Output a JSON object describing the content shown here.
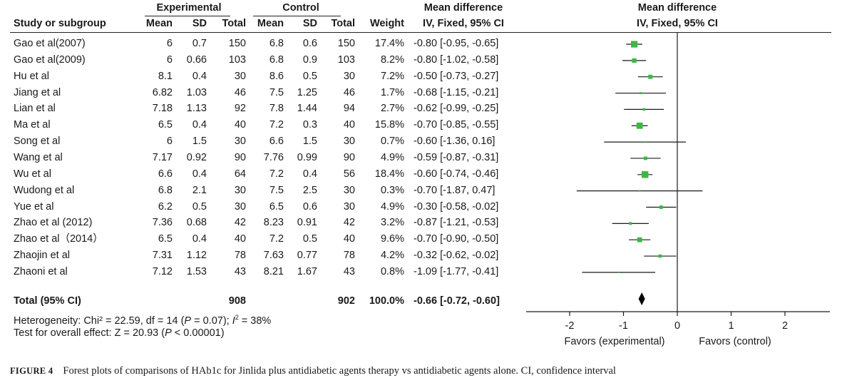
{
  "headers": {
    "group_experimental": "Experimental",
    "group_control": "Control",
    "col_study": "Study or subgroup",
    "col_mean": "Mean",
    "col_sd": "SD",
    "col_total": "Total",
    "col_weight": "Weight",
    "md_title": "Mean difference",
    "md_method": "IV, Fixed, 95% CI",
    "plot_title": "Mean difference",
    "plot_method": "IV, Fixed, 95% CI"
  },
  "rows": [
    {
      "study": "Gao et al(2007)",
      "e_mean": "6",
      "e_sd": "0.7",
      "e_total": "150",
      "c_mean": "6.8",
      "c_sd": "0.6",
      "c_total": "150",
      "weight": "17.4%",
      "ci_text": "-0.80 [-0.95, -0.65]"
    },
    {
      "study": "Gao et al(2009)",
      "e_mean": "6",
      "e_sd": "0.66",
      "e_total": "103",
      "c_mean": "6.8",
      "c_sd": "0.9",
      "c_total": "103",
      "weight": "8.2%",
      "ci_text": "-0.80 [-1.02, -0.58]"
    },
    {
      "study": "Hu et al",
      "e_mean": "8.1",
      "e_sd": "0.4",
      "e_total": "30",
      "c_mean": "8.6",
      "c_sd": "0.5",
      "c_total": "30",
      "weight": "7.2%",
      "ci_text": "-0.50 [-0.73, -0.27]"
    },
    {
      "study": "Jiang et al",
      "e_mean": "6.82",
      "e_sd": "1.03",
      "e_total": "46",
      "c_mean": "7.5",
      "c_sd": "1.25",
      "c_total": "46",
      "weight": "1.7%",
      "ci_text": "-0.68 [-1.15, -0.21]"
    },
    {
      "study": "Lian et al",
      "e_mean": "7.18",
      "e_sd": "1.13",
      "e_total": "92",
      "c_mean": "7.8",
      "c_sd": "1.44",
      "c_total": "94",
      "weight": "2.7%",
      "ci_text": "-0.62 [-0.99, -0.25]"
    },
    {
      "study": "Ma et al",
      "e_mean": "6.5",
      "e_sd": "0.4",
      "e_total": "40",
      "c_mean": "7.2",
      "c_sd": "0.3",
      "c_total": "40",
      "weight": "15.8%",
      "ci_text": "-0.70 [-0.85, -0.55]"
    },
    {
      "study": "Song et al",
      "e_mean": "6",
      "e_sd": "1.5",
      "e_total": "30",
      "c_mean": "6.6",
      "c_sd": "1.5",
      "c_total": "30",
      "weight": "0.7%",
      "ci_text": "-0.60 [-1.36, 0.16]"
    },
    {
      "study": "Wang et al",
      "e_mean": "7.17",
      "e_sd": "0.92",
      "e_total": "90",
      "c_mean": "7.76",
      "c_sd": "0.99",
      "c_total": "90",
      "weight": "4.9%",
      "ci_text": "-0.59 [-0.87, -0.31]"
    },
    {
      "study": "Wu et al",
      "e_mean": "6.6",
      "e_sd": "0.4",
      "e_total": "64",
      "c_mean": "7.2",
      "c_sd": "0.4",
      "c_total": "56",
      "weight": "18.4%",
      "ci_text": "-0.60 [-0.74, -0.46]"
    },
    {
      "study": "Wudong et al",
      "e_mean": "6.8",
      "e_sd": "2.1",
      "e_total": "30",
      "c_mean": "7.5",
      "c_sd": "2.5",
      "c_total": "30",
      "weight": "0.3%",
      "ci_text": "-0.70 [-1.87, 0.47]"
    },
    {
      "study": "Yue et al",
      "e_mean": "6.2",
      "e_sd": "0.5",
      "e_total": "30",
      "c_mean": "6.5",
      "c_sd": "0.6",
      "c_total": "30",
      "weight": "4.9%",
      "ci_text": "-0.30 [-0.58, -0.02]"
    },
    {
      "study": "Zhao et al (2012)",
      "e_mean": "7.36",
      "e_sd": "0.68",
      "e_total": "42",
      "c_mean": "8.23",
      "c_sd": "0.91",
      "c_total": "42",
      "weight": "3.2%",
      "ci_text": "-0.87 [-1.21, -0.53]"
    },
    {
      "study": "Zhao et al（2014）",
      "e_mean": "6.5",
      "e_sd": "0.4",
      "e_total": "40",
      "c_mean": "7.2",
      "c_sd": "0.5",
      "c_total": "40",
      "weight": "9.6%",
      "ci_text": "-0.70 [-0.90, -0.50]"
    },
    {
      "study": "Zhaojin et al",
      "e_mean": "7.31",
      "e_sd": "1.12",
      "e_total": "78",
      "c_mean": "7.63",
      "c_sd": "0.77",
      "c_total": "78",
      "weight": "4.2%",
      "ci_text": "-0.32 [-0.62, -0.02]"
    },
    {
      "study": "Zhaoni et al",
      "e_mean": "7.12",
      "e_sd": "1.53",
      "e_total": "43",
      "c_mean": "8.21",
      "c_sd": "1.67",
      "c_total": "43",
      "weight": "0.8%",
      "ci_text": "-1.09 [-1.77, -0.41]"
    }
  ],
  "total": {
    "label": "Total (95% CI)",
    "e_total": "908",
    "c_total": "902",
    "weight": "100.0%",
    "ci_text": "-0.66 [-0.72, -0.60]"
  },
  "heterogeneity": {
    "pre": "Heterogeneity: Chi² = 22.59, df = 14 (",
    "p_symbol": "P",
    "p_rest": " = 0.07); ",
    "i_symbol": "I",
    "i_sup": "2",
    "i_rest": " = 38%"
  },
  "overall_effect": {
    "pre": "Test for overall effect: Z = 20.93 (",
    "p_symbol": "P",
    "p_rest": " < 0.00001)"
  },
  "caption": {
    "label": "FIGURE 4",
    "text": "Forest plots of comparisons of HAb1c for Jinlida plus antidiabetic agents therapy vs antidiabetic agents alone. CI, confidence interval"
  },
  "colors": {
    "marker": "#3cb843",
    "line": "#1a1a1a",
    "diamond": "#000000"
  },
  "chart_data": {
    "type": "scatter",
    "subtype": "forest",
    "title": "Mean difference",
    "subtitle": "IV, Fixed, 95% CI",
    "x_ticks": [
      -2,
      -1,
      0,
      1,
      2
    ],
    "xlim": [
      -2.6,
      2.6
    ],
    "xlabel_left": "Favors (experimental)",
    "xlabel_right": "Favors (control)",
    "reference_line": 0,
    "studies": [
      {
        "name": "Gao et al(2007)",
        "md": -0.8,
        "lo": -0.95,
        "hi": -0.65,
        "weight": 17.4
      },
      {
        "name": "Gao et al(2009)",
        "md": -0.8,
        "lo": -1.02,
        "hi": -0.58,
        "weight": 8.2
      },
      {
        "name": "Hu et al",
        "md": -0.5,
        "lo": -0.73,
        "hi": -0.27,
        "weight": 7.2
      },
      {
        "name": "Jiang et al",
        "md": -0.68,
        "lo": -1.15,
        "hi": -0.21,
        "weight": 1.7
      },
      {
        "name": "Lian et al",
        "md": -0.62,
        "lo": -0.99,
        "hi": -0.25,
        "weight": 2.7
      },
      {
        "name": "Ma et al",
        "md": -0.7,
        "lo": -0.85,
        "hi": -0.55,
        "weight": 15.8
      },
      {
        "name": "Song et al",
        "md": -0.6,
        "lo": -1.36,
        "hi": 0.16,
        "weight": 0.7
      },
      {
        "name": "Wang et al",
        "md": -0.59,
        "lo": -0.87,
        "hi": -0.31,
        "weight": 4.9
      },
      {
        "name": "Wu et al",
        "md": -0.6,
        "lo": -0.74,
        "hi": -0.46,
        "weight": 18.4
      },
      {
        "name": "Wudong et al",
        "md": -0.7,
        "lo": -1.87,
        "hi": 0.47,
        "weight": 0.3
      },
      {
        "name": "Yue et al",
        "md": -0.3,
        "lo": -0.58,
        "hi": -0.02,
        "weight": 4.9
      },
      {
        "name": "Zhao et al (2012)",
        "md": -0.87,
        "lo": -1.21,
        "hi": -0.53,
        "weight": 3.2
      },
      {
        "name": "Zhao et al（2014）",
        "md": -0.7,
        "lo": -0.9,
        "hi": -0.5,
        "weight": 9.6
      },
      {
        "name": "Zhaojin et al",
        "md": -0.32,
        "lo": -0.62,
        "hi": -0.02,
        "weight": 4.2
      },
      {
        "name": "Zhaoni et al",
        "md": -1.09,
        "lo": -1.77,
        "hi": -0.41,
        "weight": 0.8
      }
    ],
    "pooled": {
      "md": -0.66,
      "lo": -0.72,
      "hi": -0.6
    }
  }
}
